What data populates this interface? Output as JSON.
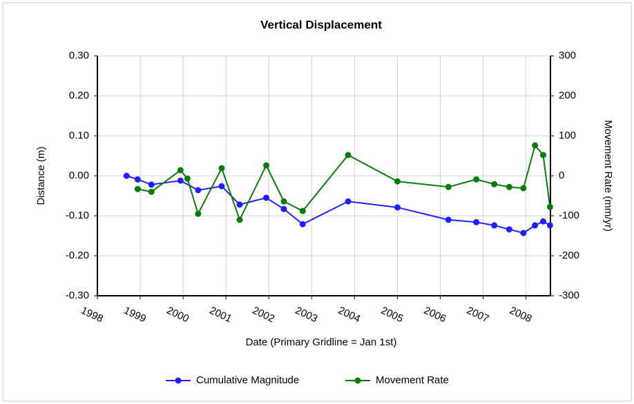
{
  "chart_data": {
    "type": "line",
    "title": "Vertical Displacement",
    "x_label": "Date (Primary Gridline = Jan 1st)",
    "y_label": "Distance (m)",
    "y2_label": "Movement Rate (mm/yr)",
    "xlim": [
      1998,
      2008.57
    ],
    "xticks": [
      1998,
      1999,
      2000,
      2001,
      2002,
      2003,
      2004,
      2005,
      2006,
      2007,
      2008
    ],
    "ylim": [
      -0.3,
      0.3
    ],
    "yticks": [
      {
        "value": 0.3,
        "label": "0.30"
      },
      {
        "value": 0.2,
        "label": "0.20"
      },
      {
        "value": 0.1,
        "label": "0.10"
      },
      {
        "value": 0,
        "label": "0.00"
      },
      {
        "value": -0.1,
        "label": "-0.10"
      },
      {
        "value": -0.2,
        "label": "-0.20"
      },
      {
        "value": -0.3,
        "label": "-0.30"
      }
    ],
    "y2lim": [
      -300,
      300
    ],
    "y2ticks": [
      300,
      200,
      100,
      0,
      -100,
      -200,
      -300
    ],
    "grid": true,
    "legend": "bottom",
    "series": [
      {
        "name": "Cumulative Magnitude",
        "color": "#1f1fff",
        "x": [
          1998.68,
          1998.94,
          1999.26,
          1999.94,
          2000.35,
          2000.9,
          2001.32,
          2001.94,
          2002.35,
          2002.79,
          2003.85,
          2005.0,
          2006.19,
          2006.84,
          2007.26,
          2007.61,
          2007.94,
          2008.21,
          2008.4,
          2008.56
        ],
        "values": [
          0.0,
          -0.009,
          -0.022,
          -0.012,
          -0.036,
          -0.026,
          -0.072,
          -0.055,
          -0.083,
          -0.121,
          -0.064,
          -0.079,
          -0.11,
          -0.116,
          -0.124,
          -0.134,
          -0.143,
          -0.124,
          -0.114,
          -0.124
        ]
      },
      {
        "name": "Movement Rate",
        "color": "#0a7a0a",
        "axis": "y2",
        "x": [
          1998.94,
          1999.26,
          1999.94,
          2000.1,
          2000.35,
          2000.9,
          2001.32,
          2001.94,
          2002.35,
          2002.79,
          2003.85,
          2005.0,
          2006.19,
          2006.84,
          2007.26,
          2007.61,
          2007.94,
          2008.21,
          2008.4,
          2008.56
        ],
        "values": [
          -33,
          -40,
          14,
          -7,
          -95,
          19,
          -110,
          26,
          -64,
          -88,
          52,
          -14,
          -28,
          -9,
          -21,
          -28,
          -31,
          76,
          52,
          -78
        ]
      }
    ]
  }
}
